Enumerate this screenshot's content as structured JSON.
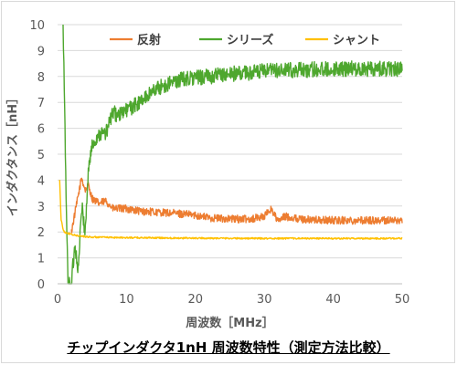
{
  "chart_data": {
    "type": "line",
    "title": "",
    "xlabel": "周波数［MHz］",
    "ylabel": "インダクタンス［nH］",
    "xlim": [
      0,
      50
    ],
    "ylim": [
      0,
      10
    ],
    "x_ticks": [
      0,
      10,
      20,
      30,
      40,
      50
    ],
    "y_ticks": [
      0,
      1,
      2,
      3,
      4,
      5,
      6,
      7,
      8,
      9,
      10
    ],
    "grid": "horizontal",
    "legend_position": "top",
    "series": [
      {
        "name": "反射",
        "color": "#ED7D31",
        "x": [
          2,
          3,
          3.5,
          4,
          4.5,
          5,
          6,
          7,
          8,
          10,
          12,
          15,
          18,
          20,
          22,
          25,
          28,
          30,
          31,
          32,
          33,
          35,
          38,
          40,
          45,
          50
        ],
        "y": [
          2.0,
          3.4,
          4.1,
          3.6,
          3.8,
          3.3,
          3.1,
          3.2,
          2.9,
          2.9,
          2.8,
          2.75,
          2.7,
          2.65,
          2.55,
          2.5,
          2.5,
          2.6,
          2.9,
          2.4,
          2.6,
          2.5,
          2.45,
          2.45,
          2.45,
          2.45
        ],
        "noise": 0.15
      },
      {
        "name": "シリーズ",
        "color": "#4EA72E",
        "x": [
          0.8,
          1.2,
          1.5,
          2,
          2.5,
          3,
          3.5,
          4,
          4.5,
          5,
          6,
          7,
          8,
          9,
          10,
          12,
          14,
          16,
          18,
          20,
          22,
          25,
          28,
          30,
          35,
          40,
          45,
          50
        ],
        "y": [
          10,
          4,
          0,
          0,
          1.5,
          0.5,
          3,
          2,
          4.5,
          5.3,
          5.8,
          5.8,
          6.6,
          6.5,
          6.7,
          7.0,
          7.5,
          7.7,
          7.9,
          7.95,
          8.0,
          8.1,
          8.15,
          8.2,
          8.25,
          8.3,
          8.3,
          8.3
        ],
        "noise": 0.3
      },
      {
        "name": "シャント",
        "color": "#FFC000",
        "x": [
          0.3,
          0.5,
          0.8,
          1,
          1.5,
          2,
          3,
          5,
          10,
          20,
          30,
          40,
          50
        ],
        "y": [
          4.0,
          2.5,
          2.1,
          2.0,
          1.95,
          1.9,
          1.85,
          1.8,
          1.78,
          1.76,
          1.75,
          1.75,
          1.75
        ],
        "noise": 0.03
      }
    ]
  },
  "caption": "チップインダクタ1nH 周波数特性（測定方法比較）"
}
